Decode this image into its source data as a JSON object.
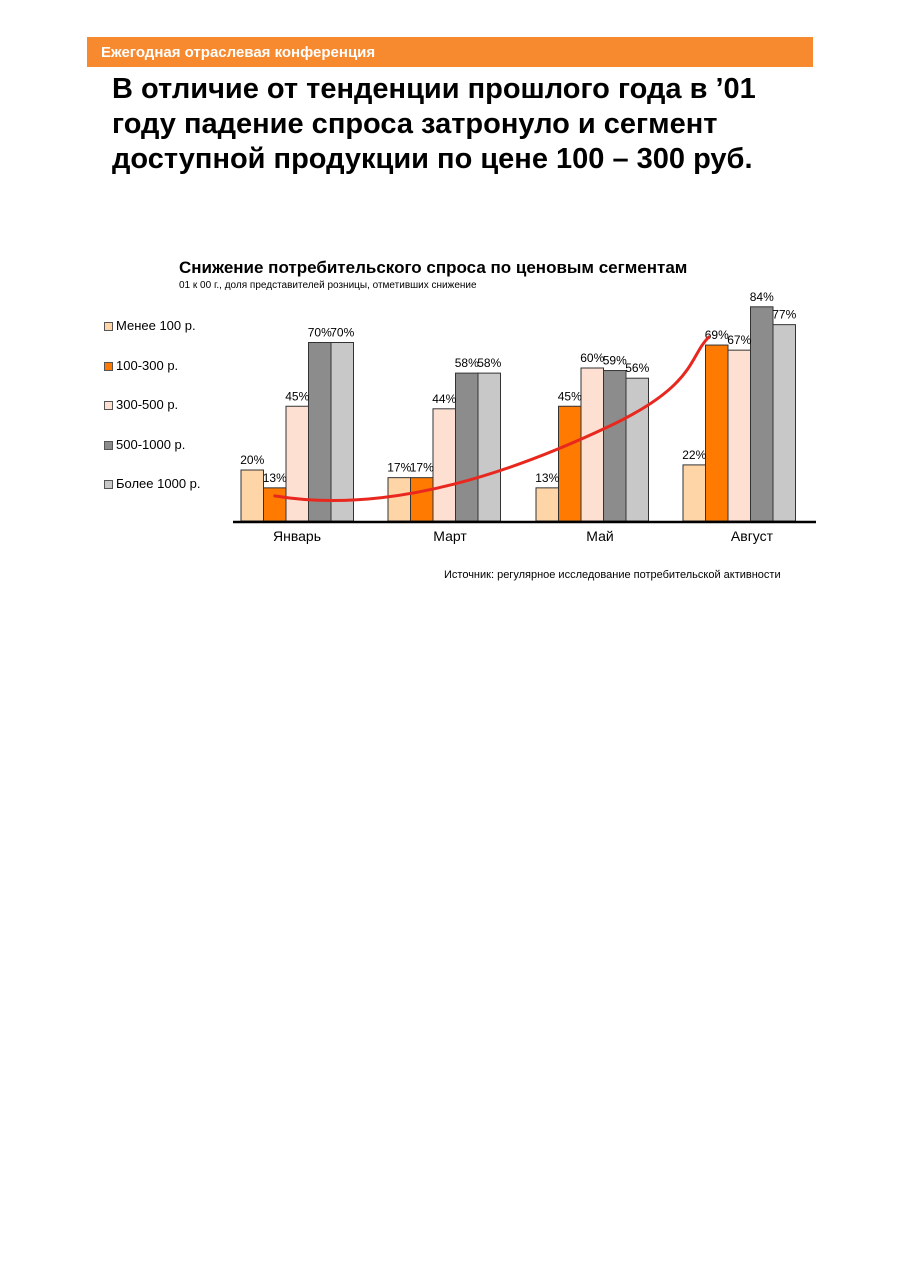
{
  "header": {
    "banner_text": "Ежегодная отраслевая конференция",
    "banner_color": "#f7892e"
  },
  "headline": "В отличие от тенденции прошлого года в ’01 году падение спроса затронуло и сегмент доступной продукции по цене 100 – 300 руб.",
  "chart_data": {
    "type": "bar",
    "title": "Снижение потребительского спроса по ценовым сегментам",
    "subtitle": "01 к 00 г., доля представителей розницы, отметивших снижение",
    "categories": [
      "Январь",
      "Март",
      "Май",
      "Август"
    ],
    "series": [
      {
        "name": "Менее 100 р.",
        "color": "#fdd5a6",
        "values": [
          20,
          17,
          13,
          22
        ],
        "labels": [
          "20%",
          "17%",
          "13%",
          "22%"
        ]
      },
      {
        "name": "100-300 р.",
        "color": "#ff7a00",
        "values": [
          13,
          17,
          45,
          69
        ],
        "labels": [
          "13%",
          "17%",
          "45%",
          "69%"
        ]
      },
      {
        "name": "300-500 р.",
        "color": "#fde0d2",
        "values": [
          45,
          44,
          60,
          67
        ],
        "labels": [
          "45%",
          "44%",
          "60%",
          "67%"
        ]
      },
      {
        "name": "500-1000 р.",
        "color": "#8c8c8c",
        "values": [
          70,
          58,
          59,
          84
        ],
        "labels": [
          "70%",
          "58%",
          "59%",
          "84%"
        ]
      },
      {
        "name": "Более 1000 р.",
        "color": "#c8c8c8",
        "values": [
          70,
          58,
          56,
          77
        ],
        "labels": [
          "70%",
          "58%",
          "56%",
          "77%"
        ]
      }
    ],
    "ylim": [
      0,
      100
    ],
    "grid": false,
    "legend_position": "left",
    "trend_line": {
      "color": "#e8281e",
      "series": "100-300 р."
    }
  },
  "source": "Источник: регулярное исследование потребительской активности"
}
